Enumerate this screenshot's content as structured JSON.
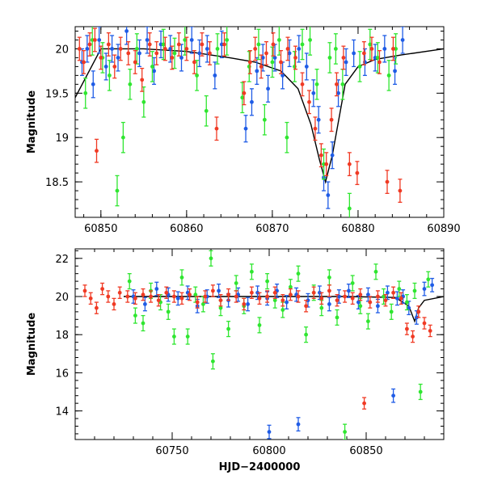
{
  "chart_data": [
    {
      "type": "scatter",
      "title": "",
      "xlabel": "",
      "ylabel": "Magnitude",
      "xlim": [
        60847,
        60890
      ],
      "ylim": [
        20.25,
        18.1
      ],
      "y_inverted": true,
      "grid": false,
      "x_ticks": [
        60850,
        60860,
        60870,
        60880,
        60890
      ],
      "x_tick_labels": [
        "60850",
        "60860",
        "60870",
        "60880",
        "60890"
      ],
      "y_ticks": [
        18.5,
        19,
        19.5,
        20
      ],
      "y_tick_labels": [
        "18.5",
        "19",
        "19.5",
        "20"
      ],
      "series": [
        {
          "color": "#1f5ce6",
          "error": 0.15,
          "x": [
            60847.8,
            60848.4,
            60849.1,
            60849.8,
            60850.6,
            60851.3,
            60852.0,
            60853.0,
            60854.5,
            60855.4,
            60856.2,
            60857.0,
            60858.1,
            60859.4,
            60860.6,
            60861.5,
            60862.4,
            60863.3,
            60864.1,
            60866.9,
            60867.6,
            60868.2,
            60868.9,
            60869.5,
            60870.3,
            60871.2,
            60872.0,
            60873.1,
            60874.0,
            60874.8,
            60875.4,
            60876.0,
            60876.5,
            60877.0,
            60877.7,
            60878.6,
            60879.5,
            60880.8,
            60882.0,
            60883.1,
            60884.3,
            60885.2
          ],
          "y": [
            19.85,
            20.0,
            19.6,
            20.1,
            19.8,
            20.0,
            19.9,
            20.2,
            19.95,
            20.1,
            19.75,
            20.05,
            20.0,
            19.9,
            20.1,
            19.95,
            20.0,
            19.7,
            20.05,
            19.1,
            19.4,
            19.75,
            19.9,
            19.55,
            19.9,
            19.7,
            19.95,
            20.0,
            19.8,
            19.5,
            19.2,
            18.55,
            18.35,
            18.8,
            19.5,
            19.85,
            19.95,
            19.85,
            19.9,
            20.0,
            19.75,
            20.1
          ]
        },
        {
          "color": "#2fe630",
          "error": 0.17,
          "x": [
            60848.2,
            60849.0,
            60850.2,
            60851.0,
            60851.9,
            60852.6,
            60853.4,
            60854.2,
            60855.0,
            60856.0,
            60857.3,
            60858.6,
            60859.8,
            60861.2,
            60862.3,
            60863.6,
            60864.7,
            60866.5,
            60867.3,
            60868.4,
            60869.1,
            60870.0,
            60870.8,
            60871.7,
            60872.6,
            60873.5,
            60874.4,
            60875.2,
            60876.0,
            60876.7,
            60877.4,
            60878.2,
            60879.0,
            60880.2,
            60881.4,
            60882.3,
            60883.6,
            60884.4
          ],
          "y": [
            19.5,
            20.1,
            19.9,
            19.7,
            18.4,
            19.0,
            19.6,
            20.0,
            19.4,
            19.8,
            20.05,
            19.95,
            20.1,
            19.7,
            19.3,
            20.0,
            20.1,
            19.45,
            19.8,
            20.05,
            19.2,
            19.85,
            20.1,
            19.0,
            19.8,
            20.05,
            20.1,
            19.6,
            18.7,
            19.9,
            20.0,
            19.6,
            18.2,
            19.8,
            20.05,
            19.9,
            19.7,
            20.0
          ]
        },
        {
          "color": "#f03a24",
          "error": 0.13,
          "x": [
            60847.5,
            60848.0,
            60848.7,
            60849.3,
            60849.5,
            60850.0,
            60850.9,
            60851.6,
            60852.3,
            60853.2,
            60854.0,
            60854.8,
            60855.7,
            60856.5,
            60857.5,
            60858.3,
            60859.1,
            60860.0,
            60860.9,
            60861.8,
            60862.7,
            60863.5,
            60864.4,
            60866.7,
            60867.4,
            60868.0,
            60868.7,
            60869.3,
            60870.1,
            60871.0,
            60871.8,
            60872.7,
            60873.5,
            60874.3,
            60875.0,
            60875.7,
            60876.3,
            60876.9,
            60877.5,
            60878.3,
            60879.0,
            60879.9,
            60880.7,
            60881.6,
            60882.5,
            60883.4,
            60884.1,
            60884.9
          ],
          "y": [
            20.0,
            19.85,
            20.05,
            20.1,
            18.85,
            19.9,
            20.05,
            19.8,
            20.0,
            19.95,
            19.85,
            19.65,
            20.05,
            19.95,
            20.0,
            19.9,
            20.05,
            20.0,
            19.85,
            20.05,
            19.95,
            19.1,
            20.05,
            19.5,
            19.85,
            20.0,
            19.8,
            19.95,
            20.05,
            19.85,
            20.0,
            19.9,
            19.6,
            19.4,
            19.1,
            18.8,
            18.7,
            19.2,
            19.6,
            19.9,
            18.7,
            18.6,
            19.95,
            20.0,
            19.85,
            18.5,
            20.0,
            18.4
          ]
        }
      ],
      "model_curve": {
        "color": "#000000",
        "x": [
          60847,
          60850,
          60855,
          60860,
          60865,
          60868,
          60871,
          60873,
          60874.5,
          60875.5,
          60876.2,
          60877,
          60878.5,
          60880,
          60882,
          60885,
          60890
        ],
        "y": [
          19.45,
          20.0,
          20.0,
          19.97,
          19.9,
          19.85,
          19.75,
          19.55,
          19.15,
          18.75,
          18.5,
          18.8,
          19.6,
          19.8,
          19.88,
          19.93,
          20.0
        ]
      }
    },
    {
      "type": "scatter",
      "title": "",
      "xlabel": "HJD−2400000",
      "ylabel": "Magnitude",
      "xlim": [
        60700,
        60890
      ],
      "ylim": [
        22.5,
        12.5
      ],
      "y_inverted": true,
      "grid": false,
      "x_ticks": [
        60750,
        60800,
        60850
      ],
      "x_tick_labels": [
        "60750",
        "60800",
        "60850"
      ],
      "y_ticks": [
        14,
        16,
        18,
        20,
        22
      ],
      "y_tick_labels": [
        "14",
        "16",
        "18",
        "20",
        "22"
      ],
      "series": [
        {
          "color": "#1f5ce6",
          "error": 0.35,
          "x": [
            60730,
            60736,
            60742,
            60748,
            60753,
            60758,
            60763,
            60768,
            60774,
            60779,
            60784,
            60789,
            60794,
            60799,
            60800,
            60804,
            60809,
            60814,
            60815,
            60820,
            60826,
            60831,
            60836,
            60841,
            60846,
            60851,
            60856,
            60861,
            60864,
            60866,
            60869,
            60872,
            60876,
            60880,
            60884
          ],
          "y": [
            20.0,
            19.6,
            20.4,
            20.1,
            19.9,
            20.2,
            19.5,
            20.0,
            20.3,
            19.8,
            20.1,
            19.6,
            20.2,
            19.9,
            12.9,
            20.3,
            19.7,
            20.1,
            13.3,
            19.8,
            20.2,
            19.6,
            20.0,
            20.3,
            19.7,
            20.1,
            19.5,
            20.2,
            14.8,
            19.9,
            20.0,
            19.4,
            18.9,
            20.4,
            20.6
          ]
        },
        {
          "color": "#2fe630",
          "error": 0.4,
          "x": [
            60728,
            60731,
            60735,
            60739,
            60744,
            60748,
            60751,
            60755,
            60758,
            60762,
            60766,
            60770,
            60771,
            60775,
            60779,
            60783,
            60787,
            60791,
            60795,
            60799,
            60803,
            60807,
            60811,
            60815,
            60819,
            60823,
            60827,
            60831,
            60835,
            60839,
            60843,
            60847,
            60851,
            60855,
            60859,
            60863,
            60867,
            60871,
            60875,
            60878,
            60882
          ],
          "y": [
            20.8,
            19.0,
            18.6,
            20.3,
            19.7,
            19.2,
            17.9,
            21.0,
            17.9,
            20.1,
            19.6,
            22.0,
            16.6,
            19.4,
            18.3,
            20.7,
            19.5,
            21.3,
            18.5,
            20.8,
            19.8,
            19.3,
            20.5,
            21.2,
            18.0,
            20.2,
            19.4,
            21.0,
            18.9,
            12.9,
            20.7,
            19.5,
            18.7,
            21.3,
            20.0,
            19.2,
            20.4,
            19.7,
            20.3,
            15.0,
            20.9
          ]
        },
        {
          "color": "#f03a24",
          "error": 0.3,
          "x": [
            60705,
            60708,
            60711,
            60714,
            60717,
            60720,
            60723,
            60727,
            60731,
            60735,
            60739,
            60743,
            60747,
            60751,
            60755,
            60759,
            60763,
            60767,
            60771,
            60775,
            60779,
            60783,
            60787,
            60791,
            60795,
            60799,
            60803,
            60807,
            60811,
            60815,
            60819,
            60823,
            60827,
            60831,
            60835,
            60839,
            60843,
            60847,
            60849,
            60852,
            60856,
            60860,
            60864,
            60868,
            60871,
            60874,
            60877,
            60880,
            60883
          ],
          "y": [
            20.3,
            19.9,
            19.4,
            20.4,
            20.0,
            19.6,
            20.2,
            20.0,
            19.9,
            20.1,
            20.0,
            19.8,
            20.2,
            20.0,
            19.9,
            20.1,
            19.7,
            20.0,
            20.3,
            19.8,
            20.1,
            20.0,
            19.6,
            20.2,
            19.9,
            20.0,
            20.2,
            19.8,
            20.1,
            20.0,
            19.5,
            20.2,
            19.9,
            20.3,
            19.8,
            20.0,
            19.9,
            20.1,
            14.4,
            19.7,
            20.0,
            19.8,
            20.2,
            19.9,
            18.3,
            17.9,
            19.2,
            18.6,
            18.2
          ]
        }
      ],
      "model_curve": {
        "color": "#000000",
        "x": [
          60725,
          60760,
          60800,
          60840,
          60865,
          60872,
          60875,
          60877,
          60880,
          60890
        ],
        "y": [
          20.0,
          20.0,
          20.0,
          20.0,
          19.95,
          19.5,
          18.7,
          19.4,
          19.8,
          20.0
        ]
      }
    }
  ]
}
